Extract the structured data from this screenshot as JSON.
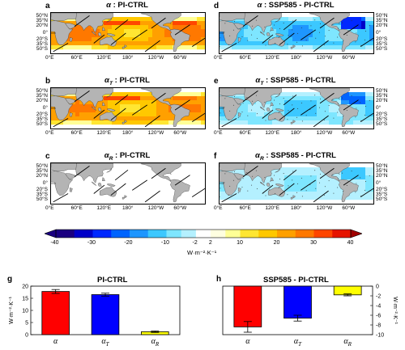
{
  "map_panels": [
    {
      "id": "a",
      "letter": "a",
      "symbol": "α",
      "sub": "",
      "suffix": " : PI-CTRL",
      "kind": "pi",
      "strength": 1.0
    },
    {
      "id": "b",
      "letter": "b",
      "symbol": "α",
      "sub": "T",
      "suffix": " : PI-CTRL",
      "kind": "pi",
      "strength": 0.95
    },
    {
      "id": "c",
      "letter": "c",
      "symbol": "α",
      "sub": "R",
      "suffix": " : PI-CTRL",
      "kind": "weak",
      "strength": 0.1
    },
    {
      "id": "d",
      "letter": "d",
      "symbol": "α",
      "sub": "",
      "suffix": " : SSP585 - PI-CTRL",
      "kind": "ssp",
      "strength": 1.0
    },
    {
      "id": "e",
      "letter": "e",
      "symbol": "α",
      "sub": "T",
      "suffix": " : SSP585 - PI-CTRL",
      "kind": "ssp",
      "strength": 0.75
    },
    {
      "id": "f",
      "letter": "f",
      "symbol": "α",
      "sub": "R",
      "suffix": " : SSP585 - PI-CTRL",
      "kind": "ssp",
      "strength": 0.45
    }
  ],
  "lat_labels": [
    "50°N",
    "35°N",
    "20°N",
    "0°",
    "20°S",
    "35°S",
    "50°S"
  ],
  "lon_labels": [
    "0°E",
    "60°E",
    "120°E",
    "180°",
    "120°W",
    "60°W"
  ],
  "colorbar": {
    "ticks": [
      "-40",
      "-30",
      "-20",
      "-10",
      "-2",
      "2",
      "10",
      "20",
      "30",
      "40"
    ],
    "unit": "W·m⁻²·K⁻¹",
    "range": [
      -40,
      40
    ]
  },
  "chart_data": [
    {
      "type": "bar",
      "panel_letter": "g",
      "title": "PI-CTRL",
      "categories": [
        {
          "symbol": "α",
          "sub": ""
        },
        {
          "symbol": "α",
          "sub": "T"
        },
        {
          "symbol": "α",
          "sub": "R"
        }
      ],
      "values": [
        17.8,
        16.5,
        1.2
      ],
      "errors": [
        0.8,
        0.6,
        0.3
      ],
      "colors": [
        "#ff0000",
        "#0000ff",
        "#ffff00"
      ],
      "ylim": [
        0,
        20
      ],
      "yticks": [
        "0",
        "5",
        "10",
        "15",
        "20"
      ],
      "ylabel": "W·m⁻²·K⁻¹",
      "axis_side": "left"
    },
    {
      "type": "bar",
      "panel_letter": "h",
      "title": "SSP585 - PI-CTRL",
      "categories": [
        {
          "symbol": "α",
          "sub": ""
        },
        {
          "symbol": "α",
          "sub": "T"
        },
        {
          "symbol": "α",
          "sub": "R"
        }
      ],
      "values": [
        -8.4,
        -6.6,
        -1.8
      ],
      "errors": [
        1.1,
        0.6,
        0.2
      ],
      "colors": [
        "#ff0000",
        "#0000ff",
        "#ffff00"
      ],
      "ylim": [
        -10,
        0
      ],
      "yticks": [
        "0",
        "-2",
        "-4",
        "-6",
        "-8",
        "-10"
      ],
      "ylabel": "W·m⁻²·K⁻¹",
      "axis_side": "right"
    }
  ]
}
